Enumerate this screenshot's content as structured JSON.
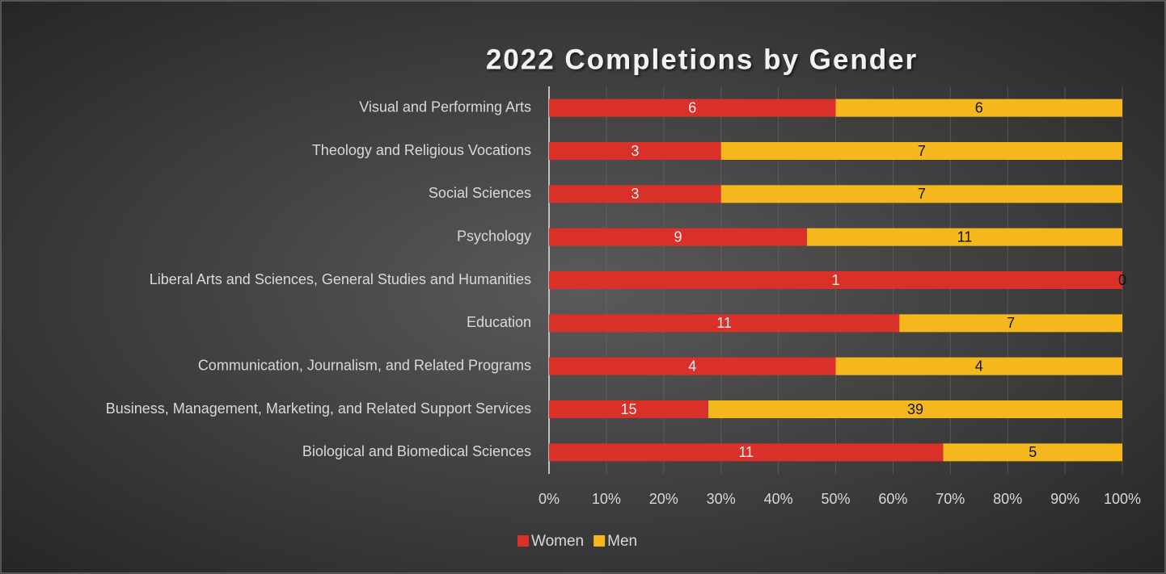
{
  "chart_data": {
    "type": "bar",
    "orientation": "horizontal",
    "stacking": "percent",
    "title": "2022 Completions by Gender",
    "categories": [
      "Visual and Performing Arts",
      "Theology and Religious Vocations",
      "Social Sciences",
      "Psychology",
      "Liberal Arts and Sciences, General Studies and Humanities",
      "Education",
      "Communication, Journalism, and Related Programs",
      "Business, Management, Marketing, and Related Support Services",
      "Biological and Biomedical Sciences"
    ],
    "series": [
      {
        "name": "Women",
        "color": "#d9302a",
        "label_color": "#f2f2f2",
        "values": [
          6,
          3,
          3,
          9,
          1,
          11,
          4,
          15,
          11
        ]
      },
      {
        "name": "Men",
        "color": "#f4b81c",
        "label_color": "#111111",
        "values": [
          6,
          7,
          7,
          11,
          0,
          7,
          4,
          39,
          5
        ]
      }
    ],
    "xlim": [
      0,
      100
    ],
    "xticks": [
      {
        "value": 0,
        "label": "0%"
      },
      {
        "value": 10,
        "label": "10%"
      },
      {
        "value": 20,
        "label": "20%"
      },
      {
        "value": 30,
        "label": "30%"
      },
      {
        "value": 40,
        "label": "40%"
      },
      {
        "value": 50,
        "label": "50%"
      },
      {
        "value": 60,
        "label": "60%"
      },
      {
        "value": 70,
        "label": "70%"
      },
      {
        "value": 80,
        "label": "80%"
      },
      {
        "value": 90,
        "label": "90%"
      },
      {
        "value": 100,
        "label": "100%"
      }
    ],
    "grid": true,
    "legend": "bottom"
  }
}
